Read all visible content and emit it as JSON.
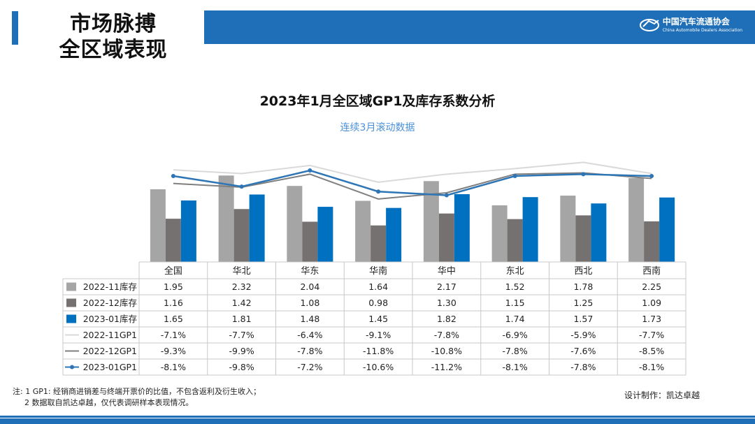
{
  "header": {
    "title_line1": "市场脉搏",
    "title_line2": "全区域表现",
    "logo_cn": "中国汽车流通协会",
    "logo_en": "China Automobile Dealers Association"
  },
  "chart_data": {
    "type": "bar",
    "title": "2023年1月全区域GP1及库存系数分析",
    "subtitle": "连续3月滚动数据",
    "categories": [
      "全国",
      "华北",
      "华东",
      "华南",
      "华中",
      "东北",
      "西北",
      "西南"
    ],
    "bar_series": [
      {
        "name": "2022-11库存",
        "color": "#a5a5a5",
        "values": [
          1.95,
          2.32,
          2.04,
          1.64,
          2.17,
          1.52,
          1.78,
          2.25
        ],
        "labels": [
          "1.95",
          "2.32",
          "2.04",
          "1.64",
          "2.17",
          "1.52",
          "1.78",
          "2.25"
        ]
      },
      {
        "name": "2022-12库存",
        "color": "#767171",
        "values": [
          1.16,
          1.42,
          1.08,
          0.98,
          1.3,
          1.15,
          1.25,
          1.09
        ],
        "labels": [
          "1.16",
          "1.42",
          "1.08",
          "0.98",
          "1.30",
          "1.15",
          "1.25",
          "1.09"
        ]
      },
      {
        "name": "2023-01库存",
        "color": "#0070c0",
        "values": [
          1.65,
          1.81,
          1.48,
          1.45,
          1.82,
          1.74,
          1.57,
          1.73
        ],
        "labels": [
          "1.65",
          "1.81",
          "1.48",
          "1.45",
          "1.82",
          "1.74",
          "1.57",
          "1.73"
        ]
      }
    ],
    "line_series": [
      {
        "name": "2022-11GP1",
        "color": "#d9d9d9",
        "marker": false,
        "values": [
          -7.1,
          -7.7,
          -6.4,
          -9.1,
          -7.8,
          -6.9,
          -5.9,
          -7.7
        ],
        "labels": [
          "-7.1%",
          "-7.7%",
          "-6.4%",
          "-9.1%",
          "-7.8%",
          "-6.9%",
          "-5.9%",
          "-7.7%"
        ]
      },
      {
        "name": "2022-12GP1",
        "color": "#7f7f7f",
        "marker": false,
        "values": [
          -9.3,
          -9.9,
          -7.8,
          -11.8,
          -10.8,
          -7.8,
          -7.6,
          -8.5
        ],
        "labels": [
          "-9.3%",
          "-9.9%",
          "-7.8%",
          "-11.8%",
          "-10.8%",
          "-7.8%",
          "-7.6%",
          "-8.5%"
        ]
      },
      {
        "name": "2023-01GP1",
        "color": "#2e75b6",
        "marker": true,
        "values": [
          -8.1,
          -9.8,
          -7.2,
          -10.6,
          -11.2,
          -8.1,
          -7.8,
          -8.1
        ],
        "labels": [
          "-8.1%",
          "-9.8%",
          "-7.2%",
          "-10.6%",
          "-11.2%",
          "-8.1%",
          "-7.8%",
          "-8.1%"
        ]
      }
    ],
    "bar_axis": {
      "min": 0,
      "max": 2.4
    },
    "line_axis": {
      "min": -18,
      "max": 0
    },
    "legend": "data-table"
  },
  "footer": {
    "note_line1": "注: 1 GP1: 经销商进销差与终端开票价的比值，不包含返利及衍生收入；",
    "note_line2": "2 数据取自凯达卓越，仅代表调研样本表现情况。",
    "credit": "设计制作：凯达卓越"
  }
}
